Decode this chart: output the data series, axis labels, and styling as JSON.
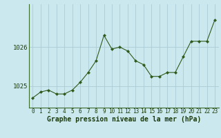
{
  "x": [
    0,
    1,
    2,
    3,
    4,
    5,
    6,
    7,
    8,
    9,
    10,
    11,
    12,
    13,
    14,
    15,
    16,
    17,
    18,
    19,
    20,
    21,
    22,
    23
  ],
  "y": [
    1024.7,
    1024.85,
    1024.9,
    1024.8,
    1024.8,
    1024.9,
    1025.1,
    1025.35,
    1025.65,
    1026.3,
    1025.95,
    1026.0,
    1025.9,
    1025.65,
    1025.55,
    1025.25,
    1025.25,
    1025.35,
    1025.35,
    1025.75,
    1026.15,
    1026.15,
    1026.15,
    1026.7
  ],
  "line_color": "#2d5a1b",
  "marker_color": "#2d5a1b",
  "background_color": "#cce8ef",
  "grid_color": "#aaccd4",
  "axis_label_color": "#1a3a0a",
  "border_color": "#3a6b28",
  "yticks": [
    1025,
    1026
  ],
  "ylim": [
    1024.45,
    1027.1
  ],
  "xlim": [
    -0.5,
    23.5
  ],
  "xlabel": "Graphe pression niveau de la mer (hPa)",
  "xlabel_fontsize": 7.0,
  "xtick_fontsize": 5.5,
  "ytick_fontsize": 6.5
}
